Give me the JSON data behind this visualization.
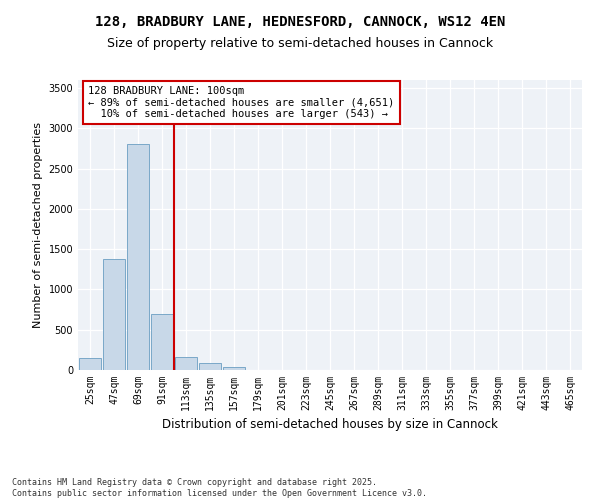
{
  "title_line1": "128, BRADBURY LANE, HEDNESFORD, CANNOCK, WS12 4EN",
  "title_line2": "Size of property relative to semi-detached houses in Cannock",
  "xlabel": "Distribution of semi-detached houses by size in Cannock",
  "ylabel": "Number of semi-detached properties",
  "bin_labels": [
    "25sqm",
    "47sqm",
    "69sqm",
    "91sqm",
    "113sqm",
    "135sqm",
    "157sqm",
    "179sqm",
    "201sqm",
    "223sqm",
    "245sqm",
    "267sqm",
    "289sqm",
    "311sqm",
    "333sqm",
    "355sqm",
    "377sqm",
    "399sqm",
    "421sqm",
    "443sqm",
    "465sqm"
  ],
  "bar_values": [
    150,
    1380,
    2800,
    700,
    165,
    85,
    35,
    0,
    0,
    0,
    0,
    0,
    0,
    0,
    0,
    0,
    0,
    0,
    0,
    0,
    0
  ],
  "bar_color": "#c8d8e8",
  "bar_edgecolor": "#7aa8c8",
  "vline_pos": 3.5,
  "vline_color": "#cc0000",
  "annotation_text": "128 BRADBURY LANE: 100sqm\n← 89% of semi-detached houses are smaller (4,651)\n  10% of semi-detached houses are larger (543) →",
  "annotation_box_color": "#ffffff",
  "annotation_box_edgecolor": "#cc0000",
  "ylim": [
    0,
    3600
  ],
  "yticks": [
    0,
    500,
    1000,
    1500,
    2000,
    2500,
    3000,
    3500
  ],
  "background_color": "#eef2f7",
  "footer_text": "Contains HM Land Registry data © Crown copyright and database right 2025.\nContains public sector information licensed under the Open Government Licence v3.0.",
  "title_fontsize": 10,
  "subtitle_fontsize": 9,
  "tick_fontsize": 7,
  "ylabel_fontsize": 8,
  "xlabel_fontsize": 8.5,
  "annotation_fontsize": 7.5,
  "footer_fontsize": 6
}
